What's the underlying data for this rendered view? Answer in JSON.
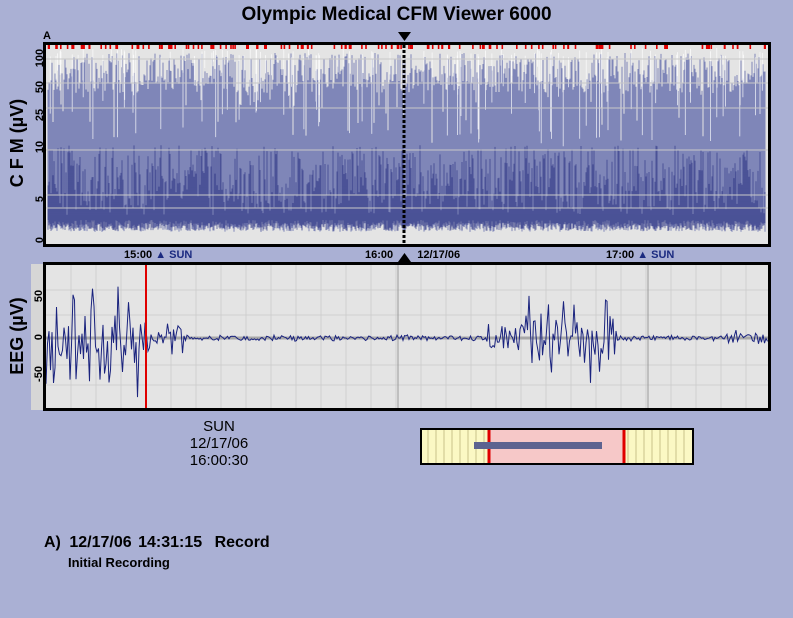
{
  "app": {
    "title": "Olympic Medical CFM Viewer 6000"
  },
  "cfm": {
    "ylabel": "C F M (µV)",
    "ticks": [
      "0",
      "5",
      "10",
      "25",
      "50",
      "100"
    ],
    "event_marker": "A",
    "time_labels": [
      {
        "time": "15:00",
        "day": "SUN"
      },
      {
        "time": "16:00",
        "day": "12/17/06"
      },
      {
        "time": "17:00",
        "day": "SUN"
      }
    ]
  },
  "eeg": {
    "ylabel": "EEG (µV)",
    "ticks": [
      "50",
      "0",
      "-50"
    ]
  },
  "cursor": {
    "day": "SUN",
    "date": "12/17/06",
    "time": "16:00:30"
  },
  "event_log": [
    {
      "label": "A)",
      "date": "12/17/06",
      "time": "14:31:15",
      "type": "Record",
      "note": "Initial Recording"
    }
  ],
  "colors": {
    "background": "#aab0d4",
    "trace": "#1a237e",
    "marker": "#e00000",
    "nav_window": "#f6c8c8"
  }
}
